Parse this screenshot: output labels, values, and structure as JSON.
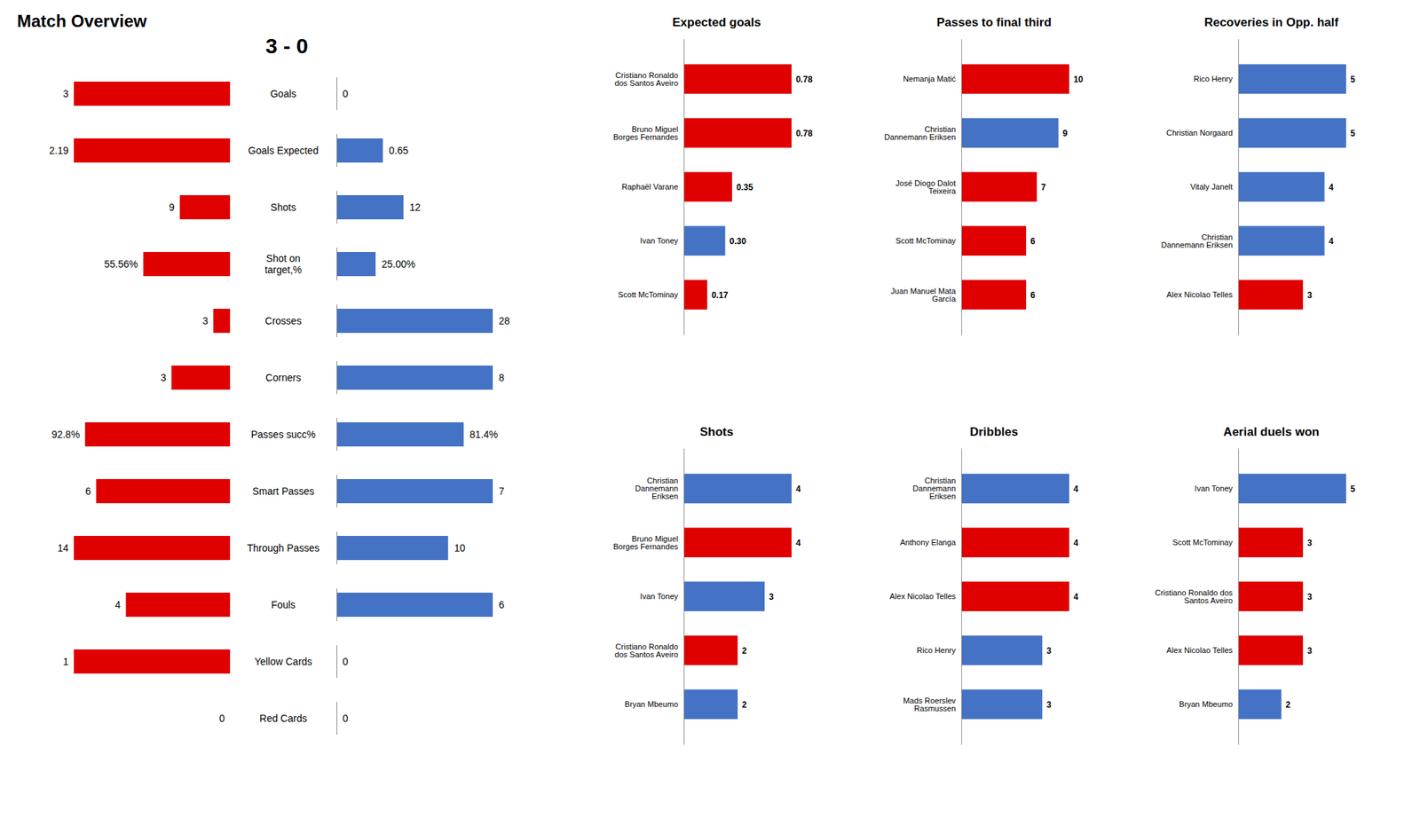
{
  "chart_data": [
    {
      "type": "diverging_bar",
      "title": "Match Overview",
      "annotation": "3 - 0",
      "categories": [
        "Goals",
        "Goals Expected",
        "Shots",
        "Shot on\ntarget,%",
        "Crosses",
        "Corners",
        "Passes succ%",
        "Smart Passes",
        "Through Passes",
        "Fouls",
        "Yellow Cards",
        "Red Cards"
      ],
      "series": [
        {
          "color": "#E00000",
          "values": [
            3,
            2.19,
            9,
            55.56,
            3,
            3,
            92.8,
            6,
            14,
            4,
            1,
            0
          ],
          "value_labels": [
            "3",
            "2.19",
            "9",
            "55.56%",
            "3",
            "3",
            "92.8%",
            "6",
            "14",
            "4",
            "1",
            "0"
          ]
        },
        {
          "color": "#4472C4",
          "values": [
            0,
            0.65,
            12,
            25.0,
            28,
            8,
            81.4,
            7,
            10,
            6,
            0,
            0
          ],
          "value_labels": [
            "0",
            "0.65",
            "12",
            "25.00%",
            "28",
            "8",
            "81.4%",
            "7",
            "10",
            "6",
            "0",
            "0"
          ]
        }
      ],
      "ref_values": [
        3,
        2.19,
        28,
        100,
        28,
        8,
        100,
        7,
        14,
        6,
        1,
        1
      ],
      "data_labels": true,
      "tick_labels": false
    },
    {
      "type": "bar",
      "orientation": "horizontal",
      "title": "Expected goals",
      "categories": [
        "Cristiano Ronaldo\ndos Santos Aveiro",
        "Bruno Miguel\nBorges Fernandes",
        "Raphaël Varane",
        "Ivan Toney",
        "Scott McTominay"
      ],
      "values": [
        0.78,
        0.78,
        0.35,
        0.3,
        0.17
      ],
      "value_labels": [
        "0.78",
        "0.78",
        "0.35",
        "0.30",
        "0.17"
      ],
      "colors": [
        "#E00000",
        "#E00000",
        "#E00000",
        "#4472C4",
        "#E00000"
      ],
      "xlim": [
        0,
        0.9516
      ],
      "data_labels": true,
      "tick_labels": "y"
    },
    {
      "type": "bar",
      "orientation": "horizontal",
      "title": "Passes to final third",
      "categories": [
        "Nemanja Matić",
        "Christian\nDannemann Eriksen",
        "José Diogo Dalot\nTeixeira",
        "Scott McTominay",
        "Juan Manuel Mata\nGarcía"
      ],
      "values": [
        10,
        9,
        7,
        6,
        6
      ],
      "colors": [
        "#E00000",
        "#4472C4",
        "#E00000",
        "#E00000",
        "#E00000"
      ],
      "xlim": [
        0,
        12.2
      ],
      "data_labels": true,
      "tick_labels": "y"
    },
    {
      "type": "bar",
      "orientation": "horizontal",
      "title": "Recoveries in Opp. half",
      "categories": [
        "Rico Henry",
        "Christian Norgaard",
        "Vitaly Janelt",
        "Christian\nDannemann Eriksen",
        "Alex Nicolao Telles"
      ],
      "values": [
        5,
        5,
        4,
        4,
        3
      ],
      "colors": [
        "#4472C4",
        "#4472C4",
        "#4472C4",
        "#4472C4",
        "#E00000"
      ],
      "xlim": [
        0,
        6.1
      ],
      "data_labels": true,
      "tick_labels": "y"
    },
    {
      "type": "bar",
      "orientation": "horizontal",
      "title": "Shots",
      "categories": [
        "Christian\nDannemann\nEriksen",
        "Bruno Miguel\nBorges Fernandes",
        "Ivan Toney",
        "Cristiano Ronaldo\ndos Santos Aveiro",
        "Bryan Mbeumo"
      ],
      "values": [
        4,
        4,
        3,
        2,
        2
      ],
      "colors": [
        "#4472C4",
        "#E00000",
        "#4472C4",
        "#E00000",
        "#4472C4"
      ],
      "xlim": [
        0,
        4.88
      ],
      "data_labels": true,
      "tick_labels": "y"
    },
    {
      "type": "bar",
      "orientation": "horizontal",
      "title": "Dribbles",
      "categories": [
        "Christian\nDannemann\nEriksen",
        "Anthony Elanga",
        "Alex Nicolao Telles",
        "Rico Henry",
        "Mads Roerslev\nRasmussen"
      ],
      "values": [
        4,
        4,
        4,
        3,
        3
      ],
      "colors": [
        "#4472C4",
        "#E00000",
        "#E00000",
        "#4472C4",
        "#4472C4"
      ],
      "xlim": [
        0,
        4.88
      ],
      "data_labels": true,
      "tick_labels": "y"
    },
    {
      "type": "bar",
      "orientation": "horizontal",
      "title": "Aerial duels won",
      "categories": [
        "Ivan Toney",
        "Scott McTominay",
        "Cristiano Ronaldo dos\nSantos Aveiro",
        "Alex Nicolao Telles",
        "Bryan Mbeumo"
      ],
      "values": [
        5,
        3,
        3,
        3,
        2
      ],
      "colors": [
        "#4472C4",
        "#E00000",
        "#E00000",
        "#E00000",
        "#4472C4"
      ],
      "xlim": [
        0,
        6.1
      ],
      "data_labels": true,
      "tick_labels": "y"
    }
  ]
}
